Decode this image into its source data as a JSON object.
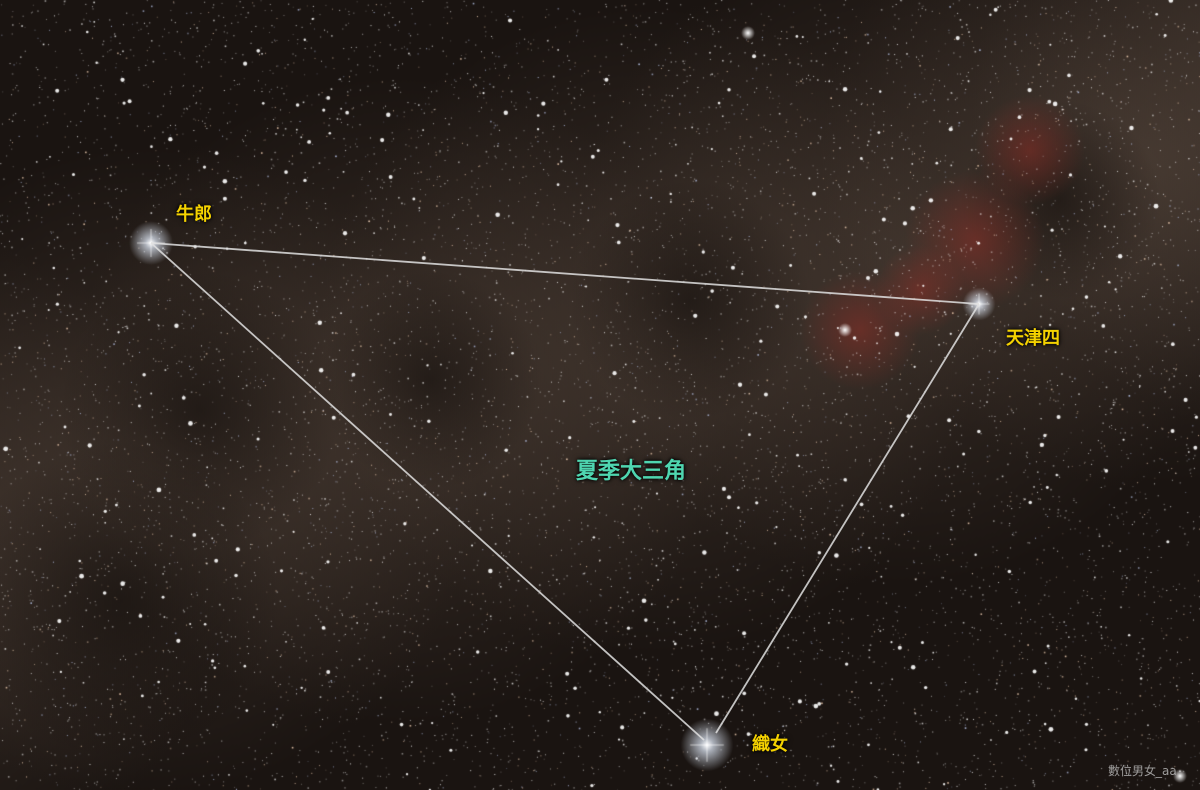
{
  "colors": {
    "sky_base": "#1a1411",
    "milky_way": "#6e5a4c",
    "nebula": "#8a2e26",
    "star_label": "#f5d200",
    "title_label": "#4fd6b0",
    "triangle_line": "#e0e0e0",
    "watermark": "#c9c9c9"
  },
  "stars": {
    "altair": {
      "label": "牛郎"
    },
    "deneb": {
      "label": "天津四"
    },
    "vega": {
      "label": "織女"
    }
  },
  "asterism": {
    "title": "夏季大三角"
  },
  "watermark": {
    "text": "數位男女_aa"
  }
}
